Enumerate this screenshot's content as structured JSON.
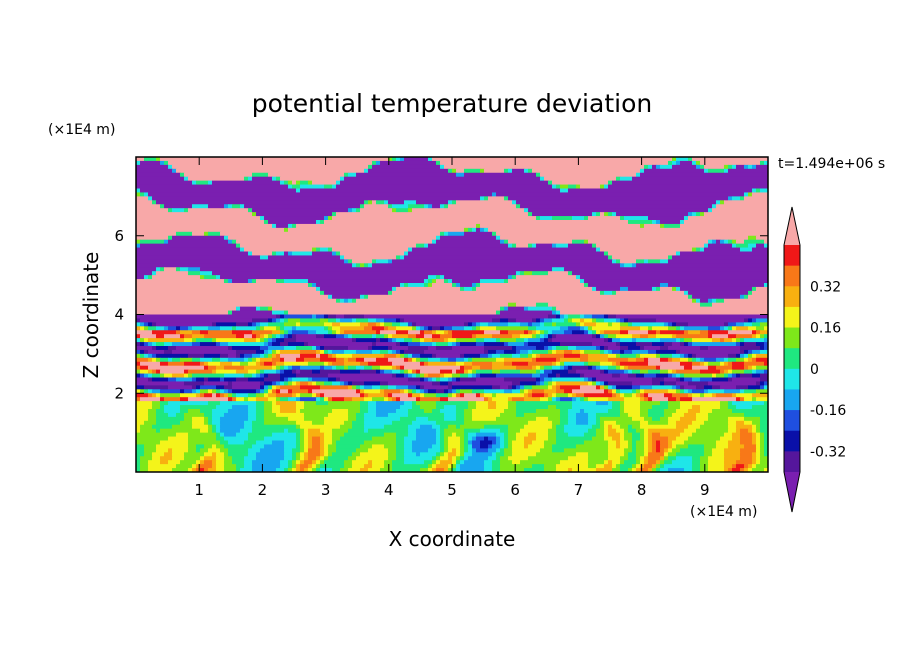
{
  "chart_data": {
    "type": "heatmap",
    "title": "potential temperature deviation",
    "xlabel": "X coordinate",
    "ylabel": "Z coordinate",
    "x_unit": "(×1E4 m)",
    "y_unit": "(×1E4 m)",
    "time_label": "t=1.494e+06 s",
    "xlim": [
      0,
      10
    ],
    "ylim": [
      0,
      8
    ],
    "x_ticks": [
      "1",
      "2",
      "3",
      "4",
      "5",
      "6",
      "7",
      "8",
      "9"
    ],
    "y_ticks": [
      "2",
      "4",
      "6"
    ],
    "colorbar": {
      "ticks": [
        "0.32",
        "0.16",
        "0",
        "-0.16",
        "-0.32"
      ],
      "levels": [
        -0.48,
        -0.4,
        -0.32,
        -0.24,
        -0.16,
        -0.08,
        0,
        0.08,
        0.16,
        0.24,
        0.32,
        0.4,
        0.48
      ],
      "colors": [
        "#7a1fb0",
        "#55169c",
        "#0a10a8",
        "#1f4fe0",
        "#18a6f0",
        "#1fe6e8",
        "#1fe880",
        "#7ee81a",
        "#f4f41a",
        "#f8b010",
        "#f87818",
        "#f01818",
        "#f8a8a8"
      ]
    },
    "layers": [
      {
        "z": [
          0,
          1.9
        ],
        "description_values": {
          "min": -0.24,
          "max": 0.32
        }
      },
      {
        "z": [
          1.9,
          4.0
        ],
        "description_values": {
          "min": -0.48,
          "max": 0.48
        }
      },
      {
        "z": [
          4.0,
          8.0
        ],
        "description_values": {
          "min": -0.48,
          "max": 0.48
        }
      }
    ]
  }
}
